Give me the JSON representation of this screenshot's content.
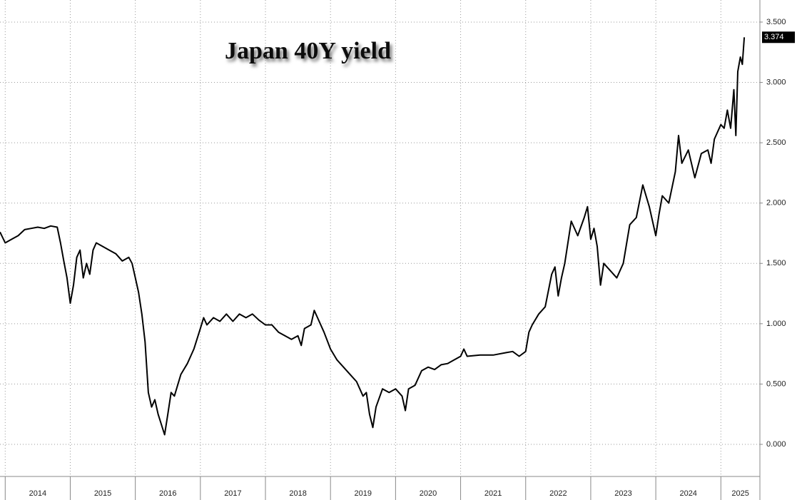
{
  "chart_data": {
    "type": "line",
    "title": "Japan 40Y yield",
    "x": [
      2013.92,
      2014.0,
      2014.1,
      2014.2,
      2014.3,
      2014.4,
      2014.5,
      2014.6,
      2014.7,
      2014.8,
      2014.85,
      2014.9,
      2014.95,
      2015.0,
      2015.05,
      2015.1,
      2015.15,
      2015.2,
      2015.25,
      2015.3,
      2015.35,
      2015.4,
      2015.5,
      2015.6,
      2015.7,
      2015.8,
      2015.9,
      2015.95,
      2016.0,
      2016.05,
      2016.1,
      2016.15,
      2016.2,
      2016.25,
      2016.3,
      2016.35,
      2016.45,
      2016.5,
      2016.55,
      2016.6,
      2016.7,
      2016.8,
      2016.9,
      2017.0,
      2017.05,
      2017.1,
      2017.2,
      2017.3,
      2017.4,
      2017.5,
      2017.6,
      2017.7,
      2017.8,
      2017.9,
      2018.0,
      2018.1,
      2018.2,
      2018.3,
      2018.4,
      2018.5,
      2018.55,
      2018.6,
      2018.7,
      2018.75,
      2018.8,
      2018.9,
      2019.0,
      2019.1,
      2019.2,
      2019.3,
      2019.4,
      2019.5,
      2019.55,
      2019.6,
      2019.65,
      2019.7,
      2019.8,
      2019.9,
      2020.0,
      2020.1,
      2020.15,
      2020.2,
      2020.3,
      2020.4,
      2020.5,
      2020.6,
      2020.7,
      2020.8,
      2020.9,
      2021.0,
      2021.05,
      2021.1,
      2021.3,
      2021.5,
      2021.7,
      2021.8,
      2021.9,
      2022.0,
      2022.05,
      2022.1,
      2022.2,
      2022.3,
      2022.4,
      2022.45,
      2022.5,
      2022.55,
      2022.6,
      2022.7,
      2022.8,
      2022.9,
      2022.95,
      2023.0,
      2023.05,
      2023.1,
      2023.15,
      2023.2,
      2023.3,
      2023.4,
      2023.5,
      2023.6,
      2023.7,
      2023.8,
      2023.9,
      2024.0,
      2024.05,
      2024.1,
      2024.2,
      2024.3,
      2024.35,
      2024.4,
      2024.5,
      2024.6,
      2024.7,
      2024.8,
      2024.85,
      2024.9,
      2025.0,
      2025.05,
      2025.1,
      2025.15,
      2025.2,
      2025.23,
      2025.26,
      2025.3,
      2025.33,
      2025.36
    ],
    "series": [
      {
        "color": "#000000",
        "values": [
          1.76,
          1.67,
          1.7,
          1.73,
          1.78,
          1.79,
          1.8,
          1.79,
          1.81,
          1.8,
          1.67,
          1.52,
          1.38,
          1.17,
          1.32,
          1.55,
          1.61,
          1.38,
          1.5,
          1.41,
          1.61,
          1.67,
          1.64,
          1.61,
          1.58,
          1.52,
          1.55,
          1.5,
          1.38,
          1.26,
          1.08,
          0.85,
          0.43,
          0.31,
          0.37,
          0.25,
          0.08,
          0.25,
          0.43,
          0.4,
          0.58,
          0.67,
          0.79,
          0.96,
          1.05,
          0.99,
          1.05,
          1.02,
          1.08,
          1.02,
          1.08,
          1.05,
          1.08,
          1.03,
          0.99,
          0.99,
          0.93,
          0.9,
          0.87,
          0.9,
          0.82,
          0.96,
          0.99,
          1.11,
          1.05,
          0.93,
          0.79,
          0.7,
          0.64,
          0.58,
          0.52,
          0.4,
          0.43,
          0.25,
          0.14,
          0.31,
          0.46,
          0.43,
          0.46,
          0.4,
          0.28,
          0.46,
          0.49,
          0.61,
          0.64,
          0.62,
          0.66,
          0.67,
          0.7,
          0.73,
          0.79,
          0.73,
          0.74,
          0.74,
          0.76,
          0.77,
          0.73,
          0.77,
          0.93,
          0.99,
          1.08,
          1.14,
          1.41,
          1.47,
          1.23,
          1.38,
          1.5,
          1.85,
          1.73,
          1.88,
          1.97,
          1.7,
          1.79,
          1.64,
          1.32,
          1.5,
          1.44,
          1.38,
          1.5,
          1.82,
          1.88,
          2.15,
          1.97,
          1.73,
          1.91,
          2.06,
          2.0,
          2.26,
          2.56,
          2.33,
          2.44,
          2.21,
          2.41,
          2.44,
          2.33,
          2.53,
          2.65,
          2.62,
          2.77,
          2.62,
          2.94,
          2.56,
          3.09,
          3.21,
          3.15,
          3.374
        ]
      }
    ],
    "xlim": [
      2013.92,
      2025.6
    ],
    "xticks": [
      2014,
      2015,
      2016,
      2017,
      2018,
      2019,
      2020,
      2021,
      2022,
      2023,
      2024,
      2025
    ],
    "ylim": [
      -0.266,
      3.683
    ],
    "yticks": [
      {
        "value": 0,
        "label": "0.000"
      },
      {
        "value": 0.5,
        "label": "0.500"
      },
      {
        "value": 1,
        "label": "1.000"
      },
      {
        "value": 1.5,
        "label": "1.500"
      },
      {
        "value": 2,
        "label": "2.000"
      },
      {
        "value": 2.5,
        "label": "2.500"
      },
      {
        "value": 3,
        "label": "3.000"
      },
      {
        "value": 3.5,
        "label": "3.500"
      }
    ],
    "grid": true
  }
}
